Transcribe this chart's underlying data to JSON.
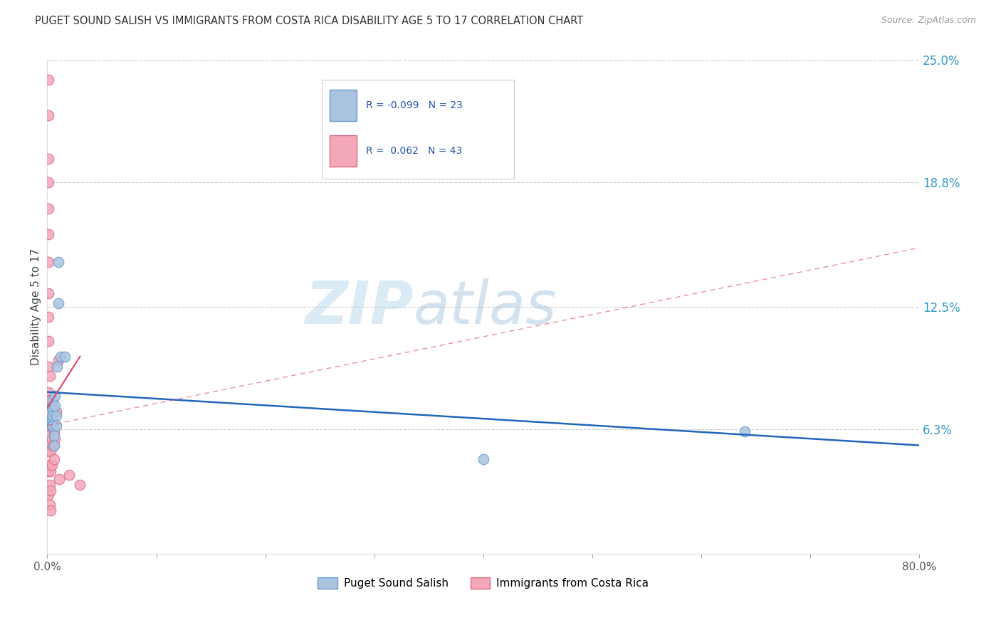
{
  "title": "PUGET SOUND SALISH VS IMMIGRANTS FROM COSTA RICA DISABILITY AGE 5 TO 17 CORRELATION CHART",
  "source": "Source: ZipAtlas.com",
  "ylabel": "Disability Age 5 to 17",
  "xlim": [
    0.0,
    0.8
  ],
  "ylim": [
    0.0,
    0.25
  ],
  "yticks": [
    0.0,
    0.063,
    0.125,
    0.188,
    0.25
  ],
  "ytick_labels": [
    "",
    "6.3%",
    "12.5%",
    "18.8%",
    "25.0%"
  ],
  "xticks": [
    0.0,
    0.1,
    0.2,
    0.3,
    0.4,
    0.5,
    0.6,
    0.7,
    0.8
  ],
  "xtick_labels": [
    "0.0%",
    "",
    "",
    "",
    "",
    "",
    "",
    "",
    "80.0%"
  ],
  "series1_name": "Puget Sound Salish",
  "series1_R": -0.099,
  "series1_N": 23,
  "series1_color": "#aac4e0",
  "series1_edge": "#6699cc",
  "series2_name": "Immigrants from Costa Rica",
  "series2_R": 0.062,
  "series2_N": 43,
  "series2_color": "#f4a7b9",
  "series2_edge": "#dd6688",
  "trend1_color": "#2266bb",
  "trend2_color": "#dd4466",
  "background_color": "#ffffff",
  "watermark_zip": "ZIP",
  "watermark_atlas": "atlas",
  "series1_x": [
    0.002,
    0.003,
    0.003,
    0.004,
    0.004,
    0.004,
    0.005,
    0.005,
    0.005,
    0.005,
    0.006,
    0.006,
    0.007,
    0.007,
    0.008,
    0.008,
    0.009,
    0.01,
    0.01,
    0.012,
    0.016,
    0.4,
    0.64
  ],
  "series1_y": [
    0.07,
    0.072,
    0.068,
    0.075,
    0.068,
    0.065,
    0.078,
    0.073,
    0.07,
    0.065,
    0.06,
    0.055,
    0.08,
    0.075,
    0.07,
    0.065,
    0.095,
    0.148,
    0.127,
    0.1,
    0.1,
    0.048,
    0.062
  ],
  "series2_x": [
    0.001,
    0.001,
    0.001,
    0.001,
    0.001,
    0.001,
    0.001,
    0.001,
    0.001,
    0.001,
    0.001,
    0.001,
    0.001,
    0.001,
    0.001,
    0.001,
    0.001,
    0.002,
    0.002,
    0.002,
    0.002,
    0.002,
    0.002,
    0.002,
    0.003,
    0.003,
    0.003,
    0.003,
    0.003,
    0.003,
    0.004,
    0.004,
    0.004,
    0.005,
    0.005,
    0.006,
    0.006,
    0.007,
    0.008,
    0.01,
    0.011,
    0.02,
    0.03
  ],
  "series2_y": [
    0.24,
    0.222,
    0.2,
    0.188,
    0.175,
    0.162,
    0.148,
    0.132,
    0.12,
    0.108,
    0.095,
    0.082,
    0.072,
    0.062,
    0.052,
    0.042,
    0.03,
    0.09,
    0.078,
    0.065,
    0.055,
    0.045,
    0.035,
    0.025,
    0.078,
    0.065,
    0.052,
    0.042,
    0.032,
    0.022,
    0.072,
    0.058,
    0.045,
    0.068,
    0.055,
    0.062,
    0.048,
    0.058,
    0.072,
    0.098,
    0.038,
    0.04,
    0.035
  ],
  "trend1_start_x": 0.0,
  "trend1_start_y": 0.082,
  "trend1_end_x": 0.8,
  "trend1_end_y": 0.055,
  "trend2_solid_start_x": 0.0,
  "trend2_solid_start_y": 0.074,
  "trend2_solid_end_x": 0.03,
  "trend2_solid_end_y": 0.1,
  "trend2_dash_start_x": 0.0,
  "trend2_dash_start_y": 0.065,
  "trend2_dash_end_x": 0.8,
  "trend2_dash_end_y": 0.155
}
